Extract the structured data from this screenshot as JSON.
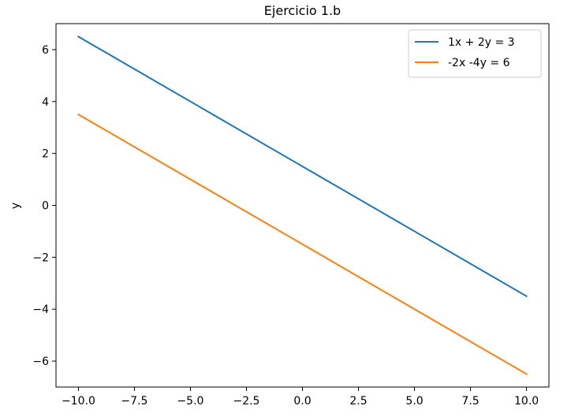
{
  "chart_data": {
    "type": "line",
    "title": "Ejercicio 1.b",
    "xlabel": "",
    "ylabel": "y",
    "x": [
      -10.0,
      10.0
    ],
    "series": [
      {
        "name": "1x + 2y = 3",
        "color": "#1f77b4",
        "values": [
          6.5,
          -3.5
        ]
      },
      {
        "name": "-2x -4y = 6",
        "color": "#ff7f0e",
        "values": [
          3.5,
          -6.5
        ]
      }
    ],
    "xlim": [
      -11.0,
      11.0
    ],
    "ylim": [
      -7.0,
      7.0
    ],
    "xticks": [
      -10.0,
      -7.5,
      -5.0,
      -2.5,
      0.0,
      2.5,
      5.0,
      7.5,
      10.0
    ],
    "xtick_labels": [
      "−10.0",
      "−7.5",
      "−5.0",
      "−2.5",
      "0.0",
      "2.5",
      "5.0",
      "7.5",
      "10.0"
    ],
    "yticks": [
      -6,
      -4,
      -2,
      0,
      2,
      4,
      6
    ],
    "ytick_labels": [
      "−6",
      "−4",
      "−2",
      "0",
      "2",
      "4",
      "6"
    ],
    "grid": false,
    "legend_position": "top-right"
  }
}
